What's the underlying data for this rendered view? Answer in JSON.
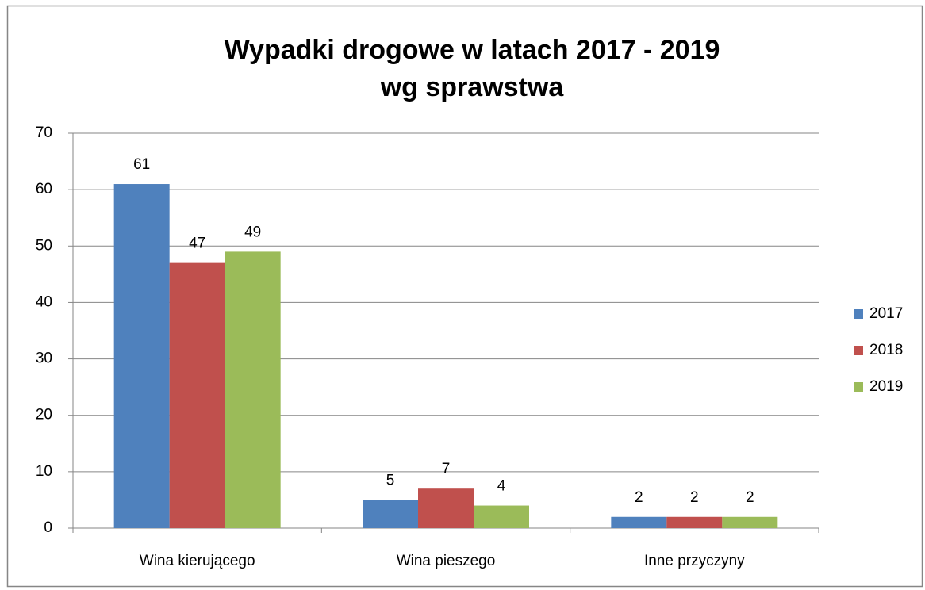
{
  "chart_data": {
    "type": "bar",
    "title": [
      "Wypadki drogowe w latach 2017 - 2019",
      "wg sprawstwa"
    ],
    "categories": [
      "Wina kierującego",
      "Wina pieszego",
      "Inne przyczyny"
    ],
    "series": [
      {
        "name": "2017",
        "color": "#4f81bd",
        "values": [
          61,
          5,
          2
        ]
      },
      {
        "name": "2018",
        "color": "#c0504d",
        "values": [
          47,
          7,
          2
        ]
      },
      {
        "name": "2019",
        "color": "#9bbb59",
        "values": [
          49,
          4,
          2
        ]
      }
    ],
    "ylim": [
      0,
      70
    ],
    "yticks": [
      0,
      10,
      20,
      30,
      40,
      50,
      60,
      70
    ],
    "grid": true,
    "legend": "right",
    "data_labels": true
  }
}
